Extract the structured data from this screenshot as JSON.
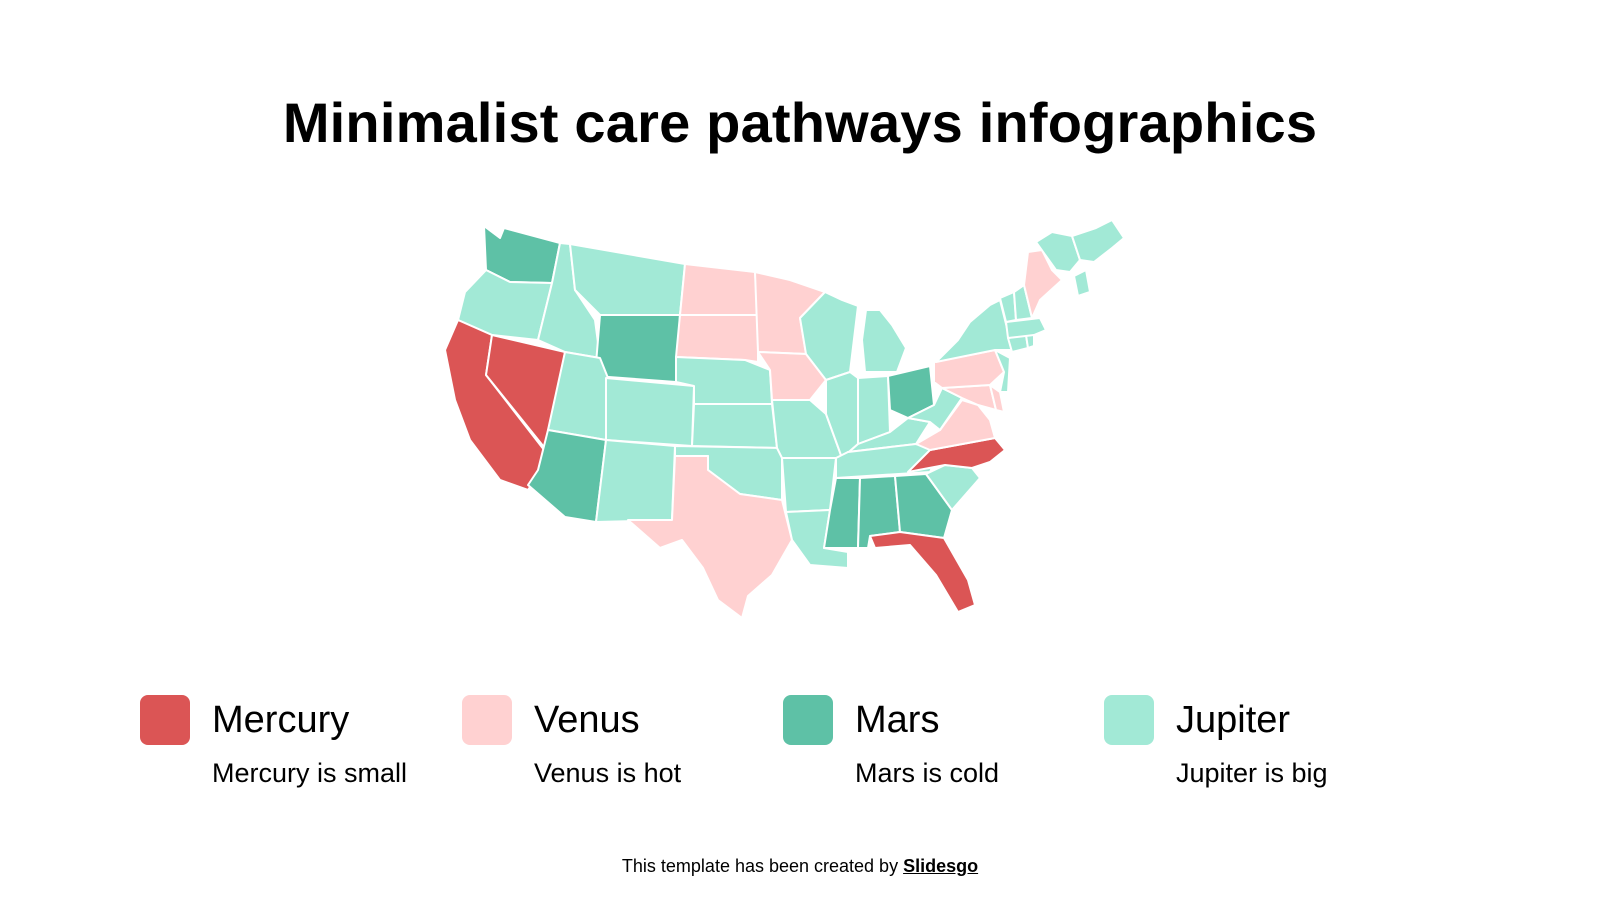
{
  "title": "Minimalist care pathways infographics",
  "colors": {
    "mercury": "#db5555",
    "venus": "#ffd1d1",
    "mars": "#5ec1a6",
    "jupiter": "#a2e9d6"
  },
  "legend": [
    {
      "name": "Mercury",
      "description": "Mercury is small",
      "color": "#db5555"
    },
    {
      "name": "Venus",
      "description": "Venus is hot",
      "color": "#ffd1d1"
    },
    {
      "name": "Mars",
      "description": "Mars is cold",
      "color": "#5ec1a6"
    },
    {
      "name": "Jupiter",
      "description": "Jupiter is big",
      "color": "#a2e9d6"
    }
  ],
  "map": {
    "region": "United States",
    "state_categories": {
      "mercury": [
        "California",
        "Nevada",
        "North Carolina",
        "Florida"
      ],
      "venus": [
        "North Dakota",
        "South Dakota",
        "Minnesota",
        "Iowa",
        "Texas",
        "Pennsylvania",
        "Virginia",
        "Maryland",
        "Delaware",
        "Maine"
      ],
      "mars": [
        "Washington",
        "Wyoming",
        "Arizona",
        "Ohio",
        "Mississippi",
        "Alabama",
        "Georgia"
      ],
      "jupiter": [
        "Oregon",
        "Idaho",
        "Montana",
        "Utah",
        "Colorado",
        "New Mexico",
        "Nebraska",
        "Kansas",
        "Oklahoma",
        "Arkansas",
        "Louisiana",
        "Missouri",
        "Illinois",
        "Indiana",
        "Michigan",
        "Wisconsin",
        "Kentucky",
        "Tennessee",
        "West Virginia",
        "South Carolina",
        "New York",
        "New Jersey",
        "Connecticut",
        "Rhode Island",
        "Massachusetts",
        "Vermont",
        "New Hampshire"
      ]
    }
  },
  "footer": {
    "prefix": "This template has been created by ",
    "brand": "Slidesgo"
  }
}
